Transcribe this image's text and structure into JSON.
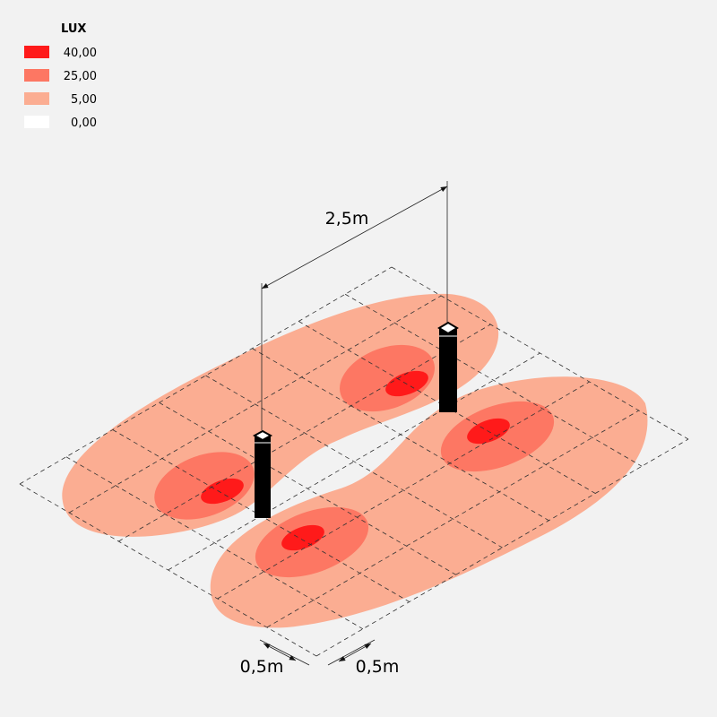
{
  "legend": {
    "title": "LUX",
    "entries": [
      {
        "label": "40,00",
        "color": "#ff1a1a"
      },
      {
        "label": "25,00",
        "color": "#fd7763"
      },
      {
        "label": "5,00",
        "color": "#fbad92"
      },
      {
        "label": "0,00",
        "color": "#ffffff"
      }
    ]
  },
  "dimensions": {
    "spacing": "2,5m",
    "width_left": "0,5m",
    "width_right": "0,5m"
  }
}
